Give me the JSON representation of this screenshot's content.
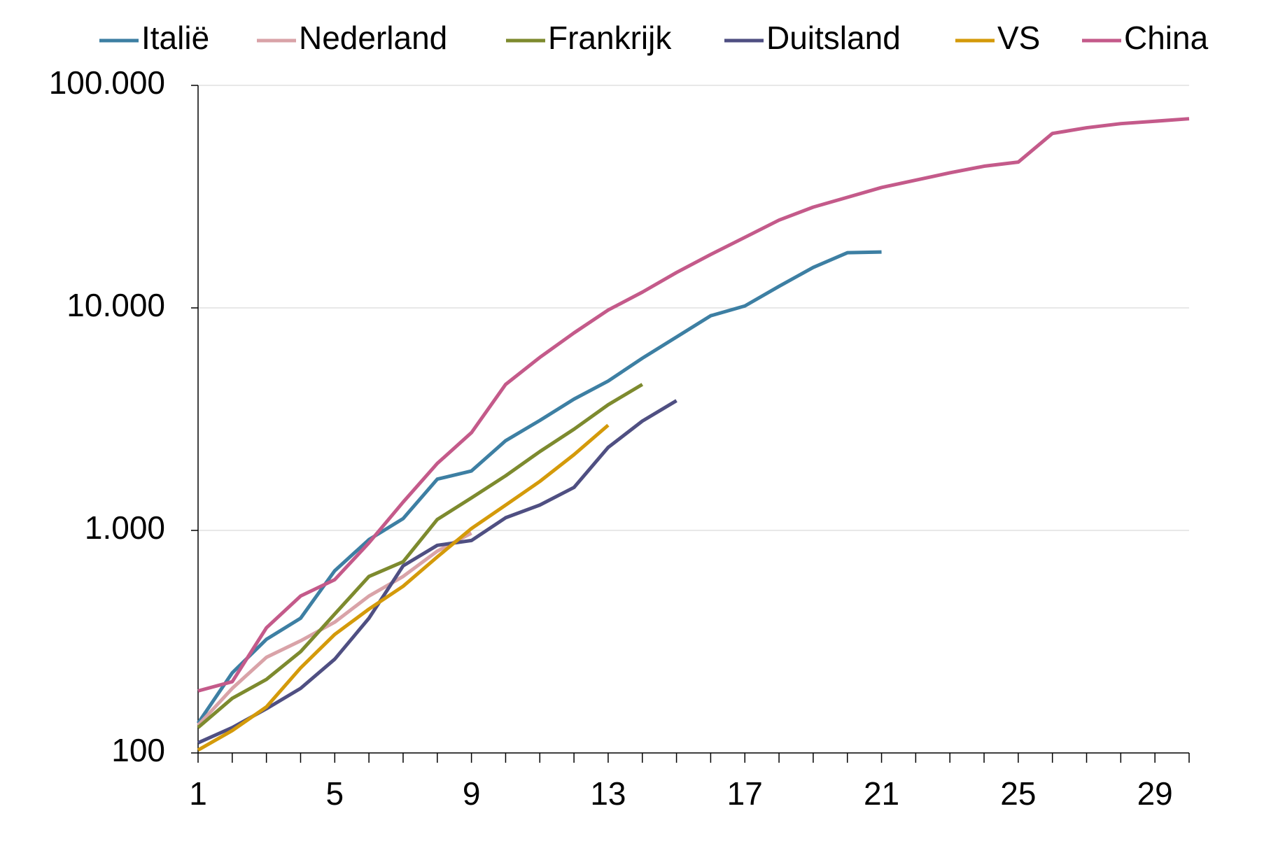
{
  "chart_data": {
    "type": "line",
    "log_scale": true,
    "grid": true,
    "legend": "top",
    "x": [
      1,
      2,
      3,
      4,
      5,
      6,
      7,
      8,
      9,
      10,
      11,
      12,
      13,
      14,
      15,
      16,
      17,
      18,
      19,
      20,
      21,
      22,
      23,
      24,
      25,
      26,
      27,
      28,
      29,
      30
    ],
    "xlim": [
      1,
      30
    ],
    "xticks": [
      1,
      5,
      9,
      13,
      17,
      21,
      25,
      29
    ],
    "ylim": [
      100,
      100000
    ],
    "yticks": [
      100,
      {
        "value": 1000,
        "label": "1.000"
      },
      {
        "value": 10000,
        "label": "10.000"
      },
      {
        "value": 100000,
        "label": "100.000"
      }
    ],
    "series": [
      {
        "name": "Italië",
        "color": "#3d7fa3",
        "values": [
          136,
          229,
          324,
          403,
          659,
          909,
          1130,
          1700,
          1850,
          2530,
          3120,
          3890,
          4690,
          5940,
          7400,
          9220,
          10200,
          12500,
          15200,
          17700,
          17830,
          null,
          null,
          null,
          null,
          null,
          null,
          null,
          null,
          null
        ]
      },
      {
        "name": "Nederland",
        "color": "#d9a3a8",
        "values": [
          133,
          195,
          269,
          319,
          387,
          507,
          621,
          807,
          972,
          null,
          null,
          null,
          null,
          null,
          null,
          null,
          null,
          null,
          null,
          null,
          null,
          null,
          null,
          null,
          null,
          null,
          null,
          null,
          null,
          null
        ]
      },
      {
        "name": "Frankrijk",
        "color": "#7d8a2e",
        "values": [
          130,
          176,
          214,
          285,
          421,
          621,
          723,
          1120,
          1400,
          1760,
          2260,
          2850,
          3670,
          4530,
          null,
          null,
          null,
          null,
          null,
          null,
          null,
          null,
          null,
          null,
          null,
          null,
          null,
          null,
          null,
          null
        ]
      },
      {
        "name": "Duitsland",
        "color": "#4f4f82",
        "values": [
          111,
          130,
          158,
          195,
          264,
          403,
          693,
          857,
          901,
          1140,
          1300,
          1560,
          2360,
          3100,
          3830,
          null,
          null,
          null,
          null,
          null,
          null,
          null,
          null,
          null,
          null,
          null,
          null,
          null,
          null,
          null
        ]
      },
      {
        "name": "VS",
        "color": "#d49a0a",
        "values": [
          103,
          126,
          161,
          241,
          341,
          443,
          561,
          760,
          1020,
          1300,
          1660,
          2190,
          2970,
          null,
          null,
          null,
          null,
          null,
          null,
          null,
          null,
          null,
          null,
          null,
          null,
          null,
          null,
          null,
          null,
          null
        ]
      },
      {
        "name": "China",
        "color": "#c45a8a",
        "values": [
          190,
          209,
          365,
          507,
          601,
          879,
          1340,
          2000,
          2750,
          4530,
          5990,
          7720,
          9780,
          11770,
          14420,
          17380,
          20750,
          24800,
          28370,
          31400,
          34760,
          37500,
          40460,
          43320,
          45200,
          60800,
          64500,
          67300,
          69000,
          70800
        ]
      }
    ]
  }
}
